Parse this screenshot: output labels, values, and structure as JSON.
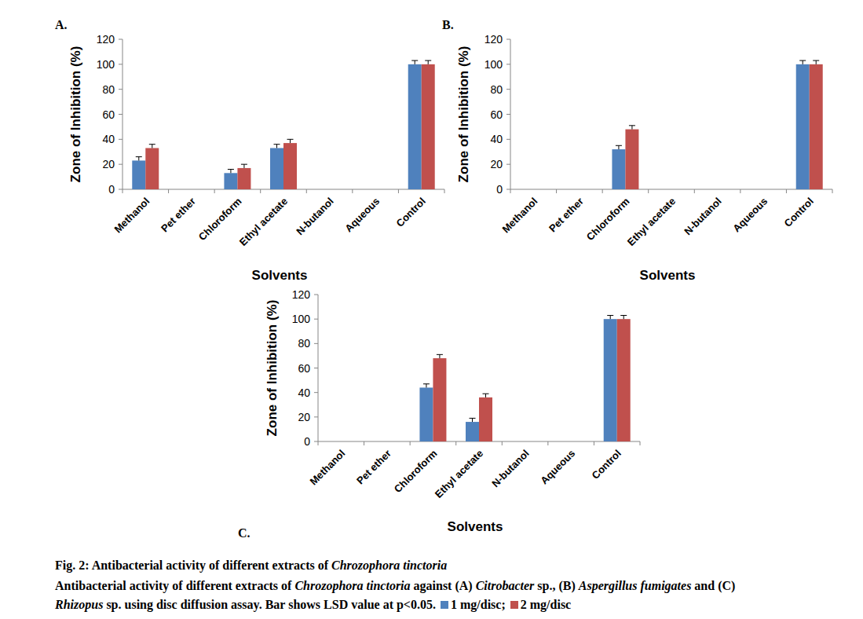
{
  "chart_data": [
    {
      "type": "bar",
      "title": "A.",
      "x_label": "Solvents",
      "y_label": "Zone of Inhibition (%)",
      "categories": [
        "Methanol",
        "Pet ether",
        "Chloroform",
        "Ethyl acetate",
        "N-butanol",
        "Aqueous",
        "Control"
      ],
      "series": [
        {
          "name": "1 mg/disc",
          "color": "#4f81bd",
          "values": [
            23,
            0,
            13,
            33,
            0,
            0,
            100
          ],
          "errors": [
            3,
            null,
            3,
            3,
            null,
            null,
            3
          ]
        },
        {
          "name": "2 mg/disc",
          "color": "#c0504d",
          "values": [
            33,
            0,
            17,
            37,
            0,
            0,
            100
          ],
          "errors": [
            3,
            null,
            3,
            3,
            null,
            null,
            3
          ]
        }
      ],
      "ylim": [
        0,
        120
      ],
      "yticks": [
        0,
        20,
        40,
        60,
        80,
        100,
        120
      ],
      "grid": false
    },
    {
      "type": "bar",
      "title": "B.",
      "x_label": "Solvents",
      "y_label": "Zone of Inhibition (%)",
      "categories": [
        "Methanol",
        "Pet ether",
        "Chloroform",
        "Ethyl acetate",
        "N-butanol",
        "Aqueous",
        "Control"
      ],
      "series": [
        {
          "color": "#4f81bd",
          "values": [
            0,
            0,
            32,
            0,
            0,
            0,
            100
          ],
          "errors": [
            null,
            null,
            3,
            null,
            null,
            null,
            3
          ]
        },
        {
          "color": "#c0504d",
          "values": [
            0,
            0,
            48,
            0,
            0,
            0,
            100
          ],
          "errors": [
            null,
            null,
            3,
            null,
            null,
            null,
            3
          ]
        }
      ],
      "ylim": [
        0,
        120
      ],
      "yticks": [
        0,
        20,
        40,
        60,
        80,
        100,
        120
      ],
      "grid": false
    },
    {
      "type": "bar",
      "title": "C.",
      "x_label": "Solvents",
      "y_label": "Zone of Inhibition (%)",
      "categories": [
        "Methanol",
        "Pet ether",
        "Chloroform",
        "Ethyl acetate",
        "N-butanol",
        "Aqueous",
        "Control"
      ],
      "series": [
        {
          "color": "#4f81bd",
          "values": [
            0,
            0,
            44,
            16,
            0,
            0,
            100
          ],
          "errors": [
            null,
            null,
            3,
            3,
            null,
            null,
            3
          ]
        },
        {
          "color": "#c0504d",
          "values": [
            0,
            0,
            68,
            36,
            0,
            0,
            100
          ],
          "errors": [
            null,
            null,
            3,
            3,
            null,
            null,
            3
          ]
        }
      ],
      "ylim": [
        0,
        120
      ],
      "yticks": [
        0,
        20,
        40,
        60,
        80,
        100,
        120
      ],
      "grid": false
    }
  ],
  "caption": {
    "title": [
      {
        "text": "Fig. 2: Antibacterial activity of different extracts of "
      },
      {
        "text": "Chrozophora tinctoria",
        "italic": true
      }
    ],
    "lines": [
      [
        {
          "text": "Antibacterial activity of different extracts of "
        },
        {
          "text": "Chrozophora tinctoria",
          "italic": true
        },
        {
          "text": " against (A) "
        },
        {
          "text": "Citrobacter",
          "italic": true
        },
        {
          "text": " sp., (B) "
        },
        {
          "text": "Aspergillus fumigates",
          "italic": true
        },
        {
          "text": " and (C)"
        }
      ],
      [
        {
          "text": "Rhizopus",
          "italic": true
        },
        {
          "text": " sp. using disc diffusion assay. Bar shows LSD value at p<0.05. "
        }
      ]
    ],
    "legend_separator": "; "
  }
}
